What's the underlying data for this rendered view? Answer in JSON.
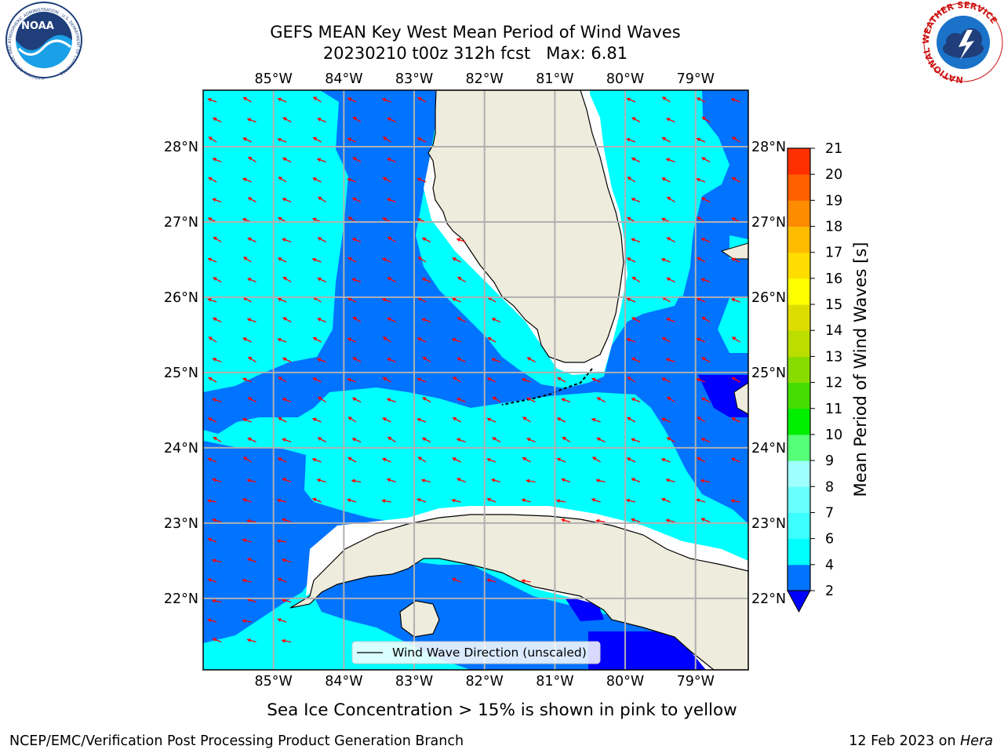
{
  "title": {
    "line1": "GEFS MEAN Key West Mean Period of Wind Waves",
    "line2": "20230210 t00z 312h fcst   Max: 6.81"
  },
  "logos": {
    "noaa_text": "NOAA",
    "noaa_ring_text": "NATIONAL OCEANIC AND ATMOSPHERIC ADMINISTRATION · U.S. DEPARTMENT OF COMMERCE",
    "nws_ring_text": "NATIONAL WEATHER SERVICE"
  },
  "map": {
    "lon_range": [
      -86.0,
      -78.25
    ],
    "lat_range": [
      21.05,
      28.75
    ],
    "lon_ticks": [
      "85°W",
      "84°W",
      "83°W",
      "82°W",
      "81°W",
      "80°W",
      "79°W"
    ],
    "lon_tick_values": [
      -85,
      -84,
      -83,
      -82,
      -81,
      -80,
      -79
    ],
    "lat_ticks": [
      "28°N",
      "27°N",
      "26°N",
      "25°N",
      "24°N",
      "23°N",
      "22°N"
    ],
    "lat_tick_values": [
      28,
      27,
      26,
      25,
      24,
      23,
      22
    ],
    "gridlines": true,
    "colors": {
      "land": "#eeecdc",
      "coast": "#000000",
      "grid": "#b0b0b0",
      "arrow": "#ff0000"
    },
    "legend": {
      "label": "Wind Wave Direction (unscaled)",
      "placement": "bottom-center"
    }
  },
  "colorbar": {
    "label": "Mean Period of Wind Waves [s]",
    "tick_labels": [
      "2",
      "4",
      "6",
      "7",
      "8",
      "9",
      "10",
      "11",
      "12",
      "13",
      "14",
      "15",
      "16",
      "17",
      "18",
      "19",
      "20",
      "21"
    ],
    "levels": [
      2,
      4,
      6,
      7,
      8,
      9,
      10,
      11,
      12,
      13,
      14,
      15,
      16,
      17,
      18,
      19,
      20,
      21
    ],
    "colors": [
      "#0073ff",
      "#00ffff",
      "#3cffff",
      "#68ffff",
      "#a0ffff",
      "#55ff77",
      "#00ee00",
      "#44dd00",
      "#88dd00",
      "#bbdd00",
      "#dddd00",
      "#ffff00",
      "#ffdd00",
      "#ffbb00",
      "#ff8c00",
      "#ff6000",
      "#ff3000"
    ],
    "under_color": "#0000ff",
    "extend": "min"
  },
  "chart_data": {
    "type": "heatmap",
    "title": "GEFS MEAN Key West Mean Period of Wind Waves",
    "subtitle": "20230210 t00z 312h fcst   Max: 6.81",
    "variable": "Mean Period of Wind Waves [s]",
    "max": 6.81,
    "xlim": [
      -86.0,
      -78.25
    ],
    "ylim": [
      21.05,
      28.75
    ],
    "value_classes_shown": [
      "<2",
      "2-4",
      "4-6"
    ],
    "dominant_wind_wave_direction": "toward the west-northwest"
  },
  "footer": {
    "note": "Sea Ice Concentration > 15% is shown in pink to yellow",
    "left": "NCEP/EMC/Verification Post Processing Product Generation Branch",
    "date": "12 Feb 2023 on ",
    "machine": "Hera"
  }
}
